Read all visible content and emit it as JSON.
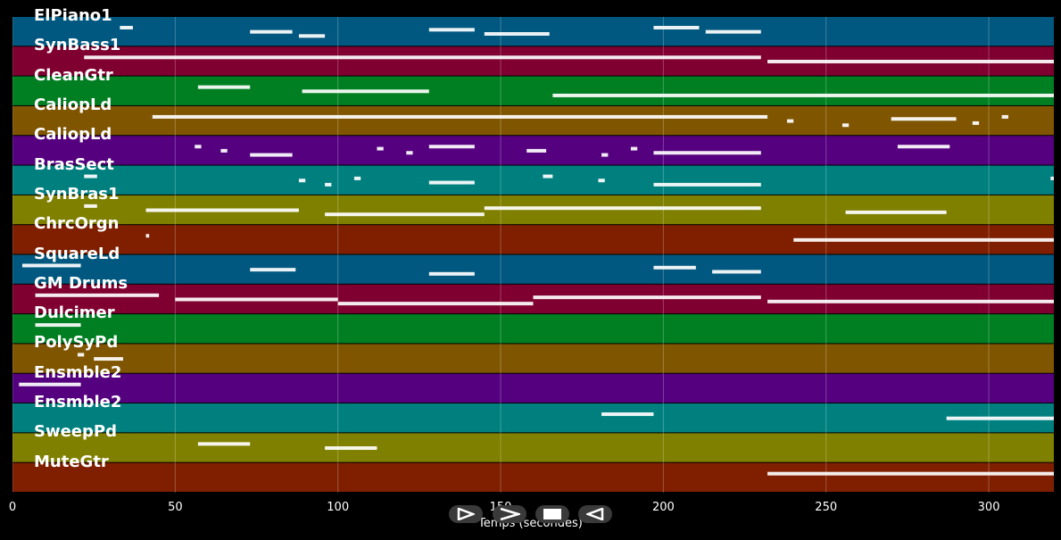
{
  "chart_data": {
    "type": "piano-roll",
    "xlabel": "Temps (secondes)",
    "xlim": [
      0,
      320
    ],
    "x_ticks": [
      0,
      50,
      100,
      150,
      200,
      250,
      300
    ],
    "grid": true,
    "tracks": [
      {
        "name": "ElPiano1",
        "color": "#00577f",
        "segments": [
          [
            33,
            37
          ],
          [
            73,
            86
          ],
          [
            88,
            96
          ],
          [
            128,
            142
          ],
          [
            145,
            165
          ],
          [
            197,
            211
          ],
          [
            213,
            230
          ]
        ]
      },
      {
        "name": "SynBass1",
        "color": "#7f0030",
        "segments": [
          [
            22,
            230
          ],
          [
            232,
            320
          ]
        ]
      },
      {
        "name": "CleanGtr",
        "color": "#007f22",
        "segments": [
          [
            57,
            73
          ],
          [
            89,
            128
          ],
          [
            166,
            320
          ]
        ]
      },
      {
        "name": "CaliopLd",
        "color": "#7f5500",
        "segments": [
          [
            43,
            232
          ],
          [
            238,
            240
          ],
          [
            255,
            257
          ],
          [
            270,
            290
          ],
          [
            295,
            297
          ],
          [
            304,
            306
          ]
        ]
      },
      {
        "name": "CaliopLd",
        "color": "#55007f",
        "segments": [
          [
            56,
            58
          ],
          [
            64,
            66
          ],
          [
            73,
            86
          ],
          [
            112,
            114
          ],
          [
            121,
            123
          ],
          [
            128,
            142
          ],
          [
            158,
            164
          ],
          [
            181,
            183
          ],
          [
            190,
            192
          ],
          [
            197,
            230
          ],
          [
            272,
            288
          ]
        ]
      },
      {
        "name": "BrasSect",
        "color": "#007f7f",
        "segments": [
          [
            22,
            26
          ],
          [
            88,
            90
          ],
          [
            96,
            98
          ],
          [
            105,
            107
          ],
          [
            128,
            142
          ],
          [
            163,
            166
          ],
          [
            180,
            182
          ],
          [
            197,
            230
          ],
          [
            319,
            320
          ]
        ]
      },
      {
        "name": "SynBras1",
        "color": "#7f7f00",
        "segments": [
          [
            22,
            26
          ],
          [
            41,
            88
          ],
          [
            96,
            145
          ],
          [
            145,
            230
          ],
          [
            256,
            287
          ]
        ]
      },
      {
        "name": "ChrcOrgn",
        "color": "#7f1f00",
        "segments": [
          [
            41,
            42
          ],
          [
            240,
            320
          ]
        ]
      },
      {
        "name": "SquareLd",
        "color": "#00577f",
        "segments": [
          [
            3,
            21
          ],
          [
            73,
            87
          ],
          [
            128,
            142
          ],
          [
            197,
            210
          ],
          [
            215,
            230
          ]
        ]
      },
      {
        "name": "GM Drums",
        "color": "#7f0030",
        "segments": [
          [
            7,
            45
          ],
          [
            50,
            100
          ],
          [
            100,
            160
          ],
          [
            160,
            230
          ],
          [
            232,
            320
          ]
        ]
      },
      {
        "name": "Dulcimer",
        "color": "#007f22",
        "segments": [
          [
            7,
            21
          ]
        ]
      },
      {
        "name": "PolySyPd",
        "color": "#7f5500",
        "segments": [
          [
            20,
            22
          ],
          [
            25,
            34
          ]
        ]
      },
      {
        "name": "Ensmble2",
        "color": "#55007f",
        "segments": [
          [
            2,
            21
          ]
        ]
      },
      {
        "name": "Ensmble2",
        "color": "#007f7f",
        "segments": [
          [
            181,
            197
          ],
          [
            287,
            320
          ]
        ]
      },
      {
        "name": "SweepPd",
        "color": "#7f7f00",
        "segments": [
          [
            57,
            73
          ],
          [
            96,
            112
          ]
        ]
      },
      {
        "name": "MuteGtr",
        "color": "#7f1f00",
        "segments": [
          [
            232,
            320
          ]
        ]
      }
    ]
  }
}
